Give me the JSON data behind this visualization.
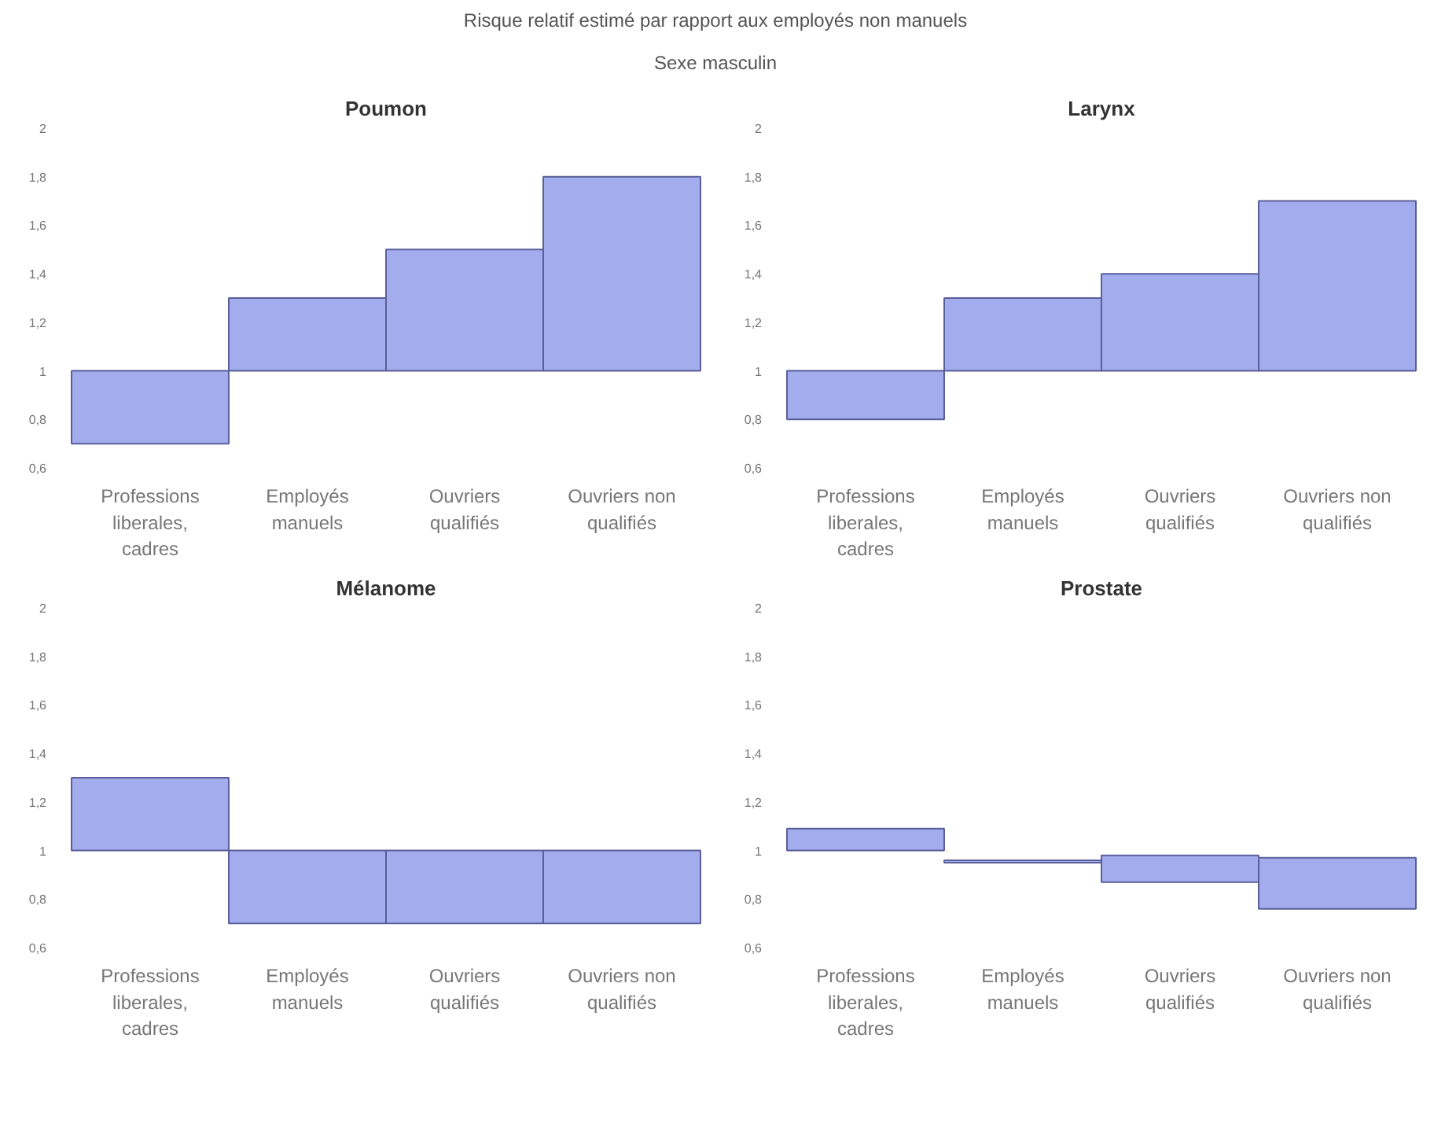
{
  "chart_data": [
    {
      "type": "bar",
      "title": "Poumon",
      "annotations": [
        "Risque relatif estimé par rapport aux employés non manuels",
        "Sexe masculin"
      ],
      "categories": [
        "Professions liberales, cadres",
        "Employés manuels",
        "Ouvriers qualifiés",
        "Ouvriers non qualifiés"
      ],
      "base": [
        1,
        1,
        1,
        1
      ],
      "values": [
        -0.3,
        0.3,
        0.5,
        0.8
      ],
      "color": "#a3acec",
      "ylim": [
        0.6,
        2
      ],
      "yticks": [
        {
          "value": 0.6,
          "label": "0,6"
        },
        {
          "value": 0.8,
          "label": "0,8"
        },
        1,
        {
          "value": 1.2,
          "label": "1,2"
        },
        {
          "value": 1.4,
          "label": "1,4"
        },
        {
          "value": 1.6,
          "label": "1,6"
        },
        {
          "value": 1.8,
          "label": "1,8"
        },
        2
      ],
      "grid": false
    },
    {
      "type": "bar",
      "title": "Larynx",
      "categories": [
        "Professions liberales, cadres",
        "Employés manuels",
        "Ouvriers qualifiés",
        "Ouvriers non qualifiés"
      ],
      "base": [
        1,
        1,
        1,
        1
      ],
      "values": [
        -0.2,
        0.3,
        0.4,
        0.7
      ],
      "color": "#a3acec",
      "ylim": [
        0.6,
        2
      ],
      "yticks": [
        {
          "value": 0.6,
          "label": "0,6"
        },
        {
          "value": 0.8,
          "label": "0,8"
        },
        1,
        {
          "value": 1.2,
          "label": "1,2"
        },
        {
          "value": 1.4,
          "label": "1,4"
        },
        {
          "value": 1.6,
          "label": "1,6"
        },
        {
          "value": 1.8,
          "label": "1,8"
        },
        2
      ],
      "grid": false
    },
    {
      "type": "bar",
      "title": "Mélanome",
      "categories": [
        "Professions liberales, cadres",
        "Employés manuels",
        "Ouvriers qualifiés",
        "Ouvriers non qualifiés"
      ],
      "base": [
        1,
        1,
        1,
        1
      ],
      "values": [
        0.3,
        -0.3,
        -0.3,
        -0.3
      ],
      "color": "#a3acec",
      "ylim": [
        0.6,
        2
      ],
      "yticks": [
        {
          "value": 0.6,
          "label": "0,6"
        },
        {
          "value": 0.8,
          "label": "0,8"
        },
        1,
        {
          "value": 1.2,
          "label": "1,2"
        },
        {
          "value": 1.4,
          "label": "1,4"
        },
        {
          "value": 1.6,
          "label": "1,6"
        },
        {
          "value": 1.8,
          "label": "1,8"
        },
        2
      ],
      "grid": false
    },
    {
      "type": "bar",
      "title": "Prostate",
      "categories": [
        "Professions liberales, cadres",
        "Employés manuels",
        "Ouvriers qualifiés",
        "Ouvriers non qualifiés"
      ],
      "base": [
        1,
        0.96,
        0.98,
        0.97
      ],
      "values": [
        0.09,
        -0.01,
        -0.11,
        -0.21
      ],
      "color": "#a3acec",
      "ylim": [
        0.6,
        2
      ],
      "yticks": [
        {
          "value": 0.6,
          "label": "0,6"
        },
        {
          "value": 0.8,
          "label": "0,8"
        },
        1,
        {
          "value": 1.2,
          "label": "1,2"
        },
        {
          "value": 1.4,
          "label": "1,4"
        },
        {
          "value": 1.6,
          "label": "1,6"
        },
        {
          "value": 1.8,
          "label": "1,8"
        },
        2
      ],
      "grid": false
    }
  ]
}
